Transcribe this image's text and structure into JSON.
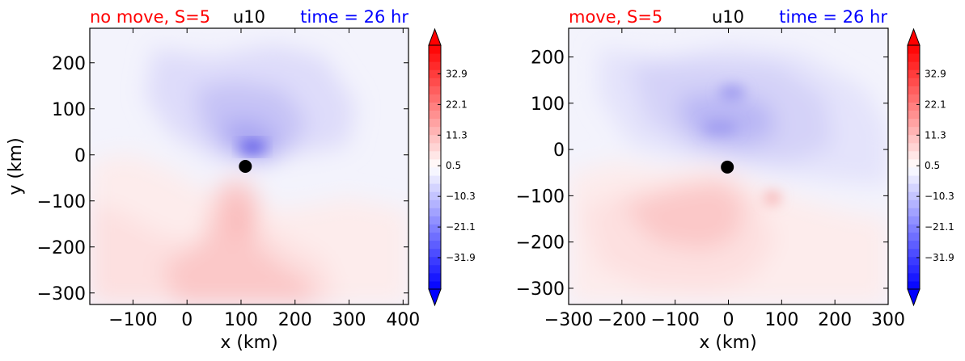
{
  "chart_data": [
    {
      "type": "heatmap",
      "title_left": "no move, S=5",
      "title_center": "u10",
      "title_right": "time = 26 hr",
      "title_colors": {
        "left": "#ff0000",
        "center": "#000000",
        "right": "#0000ff"
      },
      "xlabel": "x (km)",
      "ylabel": "y (km)",
      "xlim": [
        -180,
        410
      ],
      "ylim": [
        -325,
        275
      ],
      "xticks": [
        -100,
        0,
        100,
        200,
        300,
        400
      ],
      "yticks": [
        -300,
        -200,
        -100,
        0,
        100,
        200
      ],
      "xtick_labels": [
        "−100",
        "0",
        "100",
        "200",
        "300",
        "400"
      ],
      "ytick_labels": [
        "−300",
        "−200",
        "−100",
        "0",
        "100",
        "200"
      ],
      "center_marker": {
        "x": 108,
        "y": -25
      },
      "colorbar": {
        "vmin": -43,
        "vmax": 43,
        "ticks": [
          32.9,
          22.1,
          11.3,
          0.5,
          -10.3,
          -21.1,
          -31.9
        ],
        "tick_labels": [
          "32.9",
          "22.1",
          "11.3",
          "0.5",
          "−10.3",
          "−21.1",
          "−31.9"
        ],
        "extend": "both",
        "colors": {
          "low": "#0000ff",
          "mid": "#ffffff",
          "high": "#ff0000"
        }
      }
    },
    {
      "type": "heatmap",
      "title_left": "move, S=5",
      "title_center": "u10",
      "title_right": "time = 26 hr",
      "title_colors": {
        "left": "#ff0000",
        "center": "#000000",
        "right": "#0000ff"
      },
      "xlabel": "x (km)",
      "ylabel": "",
      "xlim": [
        -300,
        300
      ],
      "ylim": [
        -335,
        262
      ],
      "xticks": [
        -300,
        -200,
        -100,
        0,
        100,
        200,
        300
      ],
      "yticks": [
        -300,
        -200,
        -100,
        0,
        100,
        200
      ],
      "xtick_labels": [
        "−300",
        "−200",
        "−100",
        "0",
        "100",
        "200",
        "300"
      ],
      "ytick_labels": [
        "−300",
        "−200",
        "−100",
        "0",
        "100",
        "200"
      ],
      "center_marker": {
        "x": -2,
        "y": -38
      },
      "colorbar": {
        "vmin": -43,
        "vmax": 43,
        "ticks": [
          32.9,
          22.1,
          11.3,
          0.5,
          -10.3,
          -21.1,
          -31.9
        ],
        "tick_labels": [
          "32.9",
          "22.1",
          "11.3",
          "0.5",
          "−10.3",
          "−21.1",
          "−31.9"
        ],
        "extend": "both",
        "colors": {
          "low": "#0000ff",
          "mid": "#ffffff",
          "high": "#ff0000"
        }
      }
    }
  ]
}
